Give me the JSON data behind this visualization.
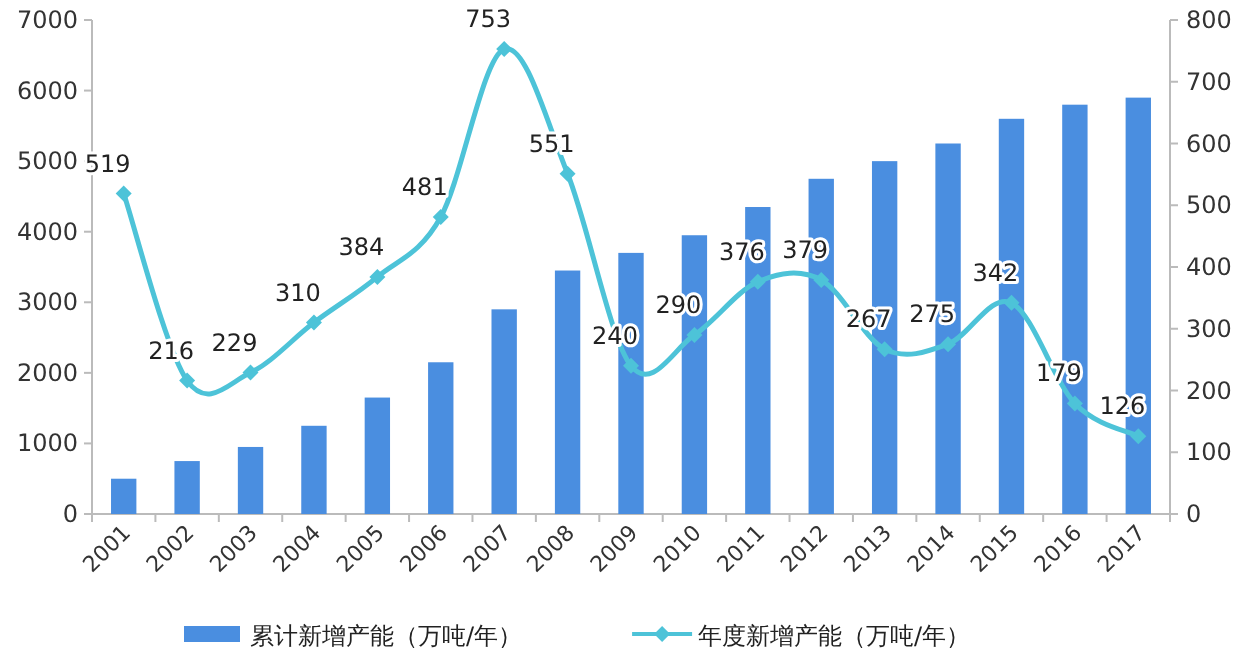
{
  "chart_data": {
    "type": "bar",
    "categories": [
      "2001",
      "2002",
      "2003",
      "2004",
      "2005",
      "2006",
      "2007",
      "2008",
      "2009",
      "2010",
      "2011",
      "2012",
      "2013",
      "2014",
      "2015",
      "2016",
      "2017"
    ],
    "series": [
      {
        "name": "累计新增产能（万吨/年）",
        "color": "#4a8ee0",
        "values": [
          500,
          750,
          950,
          1250,
          1650,
          2150,
          2900,
          3450,
          3700,
          3950,
          4350,
          4750,
          5000,
          5250,
          5600,
          5800,
          5900
        ]
      },
      {
        "name": "年度新增产能（万吨/年）",
        "type": "line",
        "axis": "y2",
        "color": "#4dc3d8",
        "values": [
          519,
          216,
          229,
          310,
          384,
          481,
          753,
          551,
          240,
          290,
          376,
          379,
          267,
          275,
          342,
          179,
          126
        ],
        "value_labels": [
          "519",
          "216",
          "229",
          "310",
          "384",
          "481",
          "753",
          "551",
          "240",
          "290",
          "376",
          "379",
          "267",
          "275",
          "342",
          "179",
          "126"
        ]
      }
    ],
    "ylim": [
      0,
      7000
    ],
    "yticks": [
      0,
      1000,
      2000,
      3000,
      4000,
      5000,
      6000,
      7000
    ],
    "y2lim": [
      0,
      800
    ],
    "y2ticks": [
      0,
      100,
      200,
      300,
      400,
      500,
      600,
      700,
      800
    ],
    "legend": "bottom",
    "marker": "diamond"
  }
}
